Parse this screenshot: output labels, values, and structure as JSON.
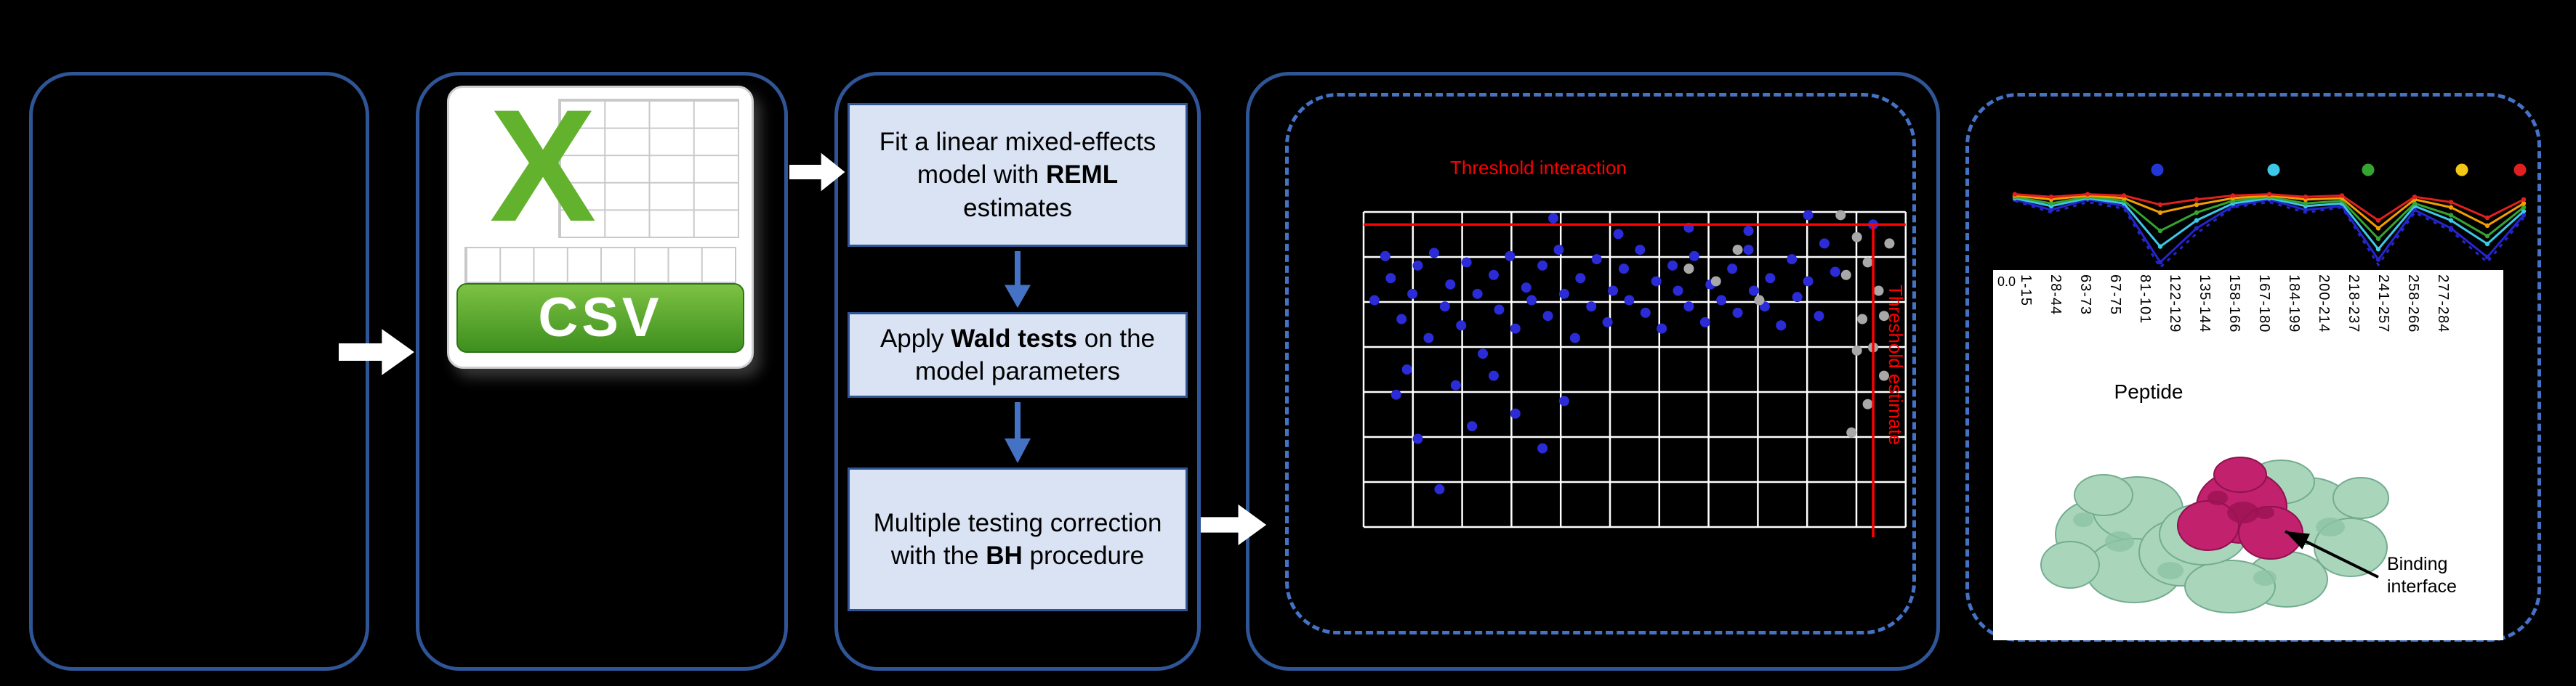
{
  "figure": {
    "background": "#000000",
    "panel_border_color": "#2f5597",
    "dashed_border_color": "#4472c4"
  },
  "csv": {
    "letter": "X",
    "banner_label": "CSV"
  },
  "pipeline": {
    "box_fill": "#dae3f3",
    "arrow_color": "#4472c4",
    "steps": [
      {
        "pre": "Fit a linear mixed-effects model with ",
        "bold": "REML",
        "post": " estimates"
      },
      {
        "pre": "Apply ",
        "bold": "Wald tests",
        "post": " on the model parameters"
      },
      {
        "pre": "Multiple testing correction with the ",
        "bold": "BH",
        "post": " procedure"
      }
    ]
  },
  "protein": {
    "caption": "Binding interface",
    "surface_color": "#a9d6ba",
    "interface_color": "#c2216d"
  },
  "chart_data": [
    {
      "id": "interaction-scatter",
      "type": "scatter",
      "grid": {
        "v_lines": 12,
        "h_lines": 8,
        "color": "#ffffff"
      },
      "thresholds": {
        "color": "#ff0000",
        "horizontal_y_pct": 4,
        "vertical_x_pct": 94,
        "horizontal_label": "Threshold interaction",
        "vertical_label": "Threshold estimate"
      },
      "series": [
        {
          "name": "blue",
          "color": "#2b2bd8",
          "points_pct": [
            [
              2,
              28
            ],
            [
              4,
              14
            ],
            [
              5,
              21
            ],
            [
              7,
              34
            ],
            [
              9,
              26
            ],
            [
              10,
              17
            ],
            [
              12,
              40
            ],
            [
              13,
              13
            ],
            [
              15,
              30
            ],
            [
              16,
              23
            ],
            [
              18,
              36
            ],
            [
              19,
              16
            ],
            [
              21,
              26
            ],
            [
              22,
              45
            ],
            [
              24,
              20
            ],
            [
              25,
              31
            ],
            [
              27,
              14
            ],
            [
              28,
              37
            ],
            [
              30,
              24
            ],
            [
              31,
              28
            ],
            [
              33,
              17
            ],
            [
              34,
              33
            ],
            [
              36,
              12
            ],
            [
              37,
              26
            ],
            [
              39,
              40
            ],
            [
              40,
              21
            ],
            [
              42,
              30
            ],
            [
              43,
              15
            ],
            [
              45,
              35
            ],
            [
              46,
              25
            ],
            [
              48,
              18
            ],
            [
              49,
              28
            ],
            [
              51,
              12
            ],
            [
              52,
              32
            ],
            [
              54,
              22
            ],
            [
              55,
              37
            ],
            [
              57,
              17
            ],
            [
              58,
              25
            ],
            [
              60,
              30
            ],
            [
              61,
              14
            ],
            [
              63,
              35
            ],
            [
              64,
              23
            ],
            [
              66,
              28
            ],
            [
              68,
              18
            ],
            [
              69,
              32
            ],
            [
              71,
              12
            ],
            [
              72,
              25
            ],
            [
              74,
              30
            ],
            [
              75,
              21
            ],
            [
              77,
              36
            ],
            [
              79,
              15
            ],
            [
              80,
              27
            ],
            [
              82,
              22
            ],
            [
              84,
              33
            ],
            [
              85,
              10
            ],
            [
              87,
              19
            ],
            [
              6,
              58
            ],
            [
              10,
              72
            ],
            [
              14,
              88
            ],
            [
              17,
              55
            ],
            [
              20,
              68
            ],
            [
              24,
              52
            ],
            [
              28,
              64
            ],
            [
              33,
              75
            ],
            [
              37,
              60
            ],
            [
              8,
              50
            ],
            [
              35,
              2
            ],
            [
              60,
              5
            ],
            [
              82,
              1
            ],
            [
              94,
              4
            ],
            [
              47,
              7
            ],
            [
              71,
              6
            ]
          ]
        },
        {
          "name": "gray",
          "color": "#a8a8a8",
          "points_pct": [
            [
              88,
              1
            ],
            [
              91,
              8
            ],
            [
              93,
              16
            ],
            [
              95,
              25
            ],
            [
              92,
              34
            ],
            [
              94,
              43
            ],
            [
              96,
              52
            ],
            [
              93,
              61
            ],
            [
              90,
              70
            ],
            [
              89,
              20
            ],
            [
              91,
              44
            ],
            [
              97,
              10
            ],
            [
              65,
              22
            ],
            [
              69,
              12
            ],
            [
              73,
              28
            ],
            [
              60,
              18
            ],
            [
              96,
              33
            ]
          ]
        }
      ]
    },
    {
      "id": "uptake-profile",
      "type": "line",
      "xlabel": "Peptide",
      "y_tick_labels": [
        "0.0"
      ],
      "x_categories": [
        "1-15",
        "28-44",
        "63-73",
        "67-75",
        "81-101",
        "122-129",
        "135-144",
        "158-166",
        "167-180",
        "184-199",
        "200-214",
        "218-237",
        "241-257",
        "258-266",
        "277-284"
      ],
      "legend_dot_colors": [
        "#2336d4",
        "#3cc8e6",
        "#36a431",
        "#f2c715",
        "#e02020"
      ],
      "series": [
        {
          "name": "blue-dashed",
          "color": "#2525cc",
          "dash": "5 7",
          "values": [
            -0.35,
            -0.8,
            -0.4,
            -0.65,
            -2.9,
            -1.6,
            -0.6,
            -0.4,
            -0.8,
            -0.6,
            -2.8,
            -0.8,
            -1.5,
            -2.7,
            -1.0
          ]
        },
        {
          "name": "blue",
          "color": "#2525cc",
          "dash": "",
          "values": [
            -0.3,
            -0.7,
            -0.3,
            -0.55,
            -2.7,
            -1.4,
            -0.55,
            -0.3,
            -0.7,
            -0.55,
            -2.6,
            -0.7,
            -1.4,
            -2.5,
            -0.9
          ]
        },
        {
          "name": "cyan",
          "color": "#3cc8e6",
          "dash": "",
          "values": [
            -0.25,
            -0.55,
            -0.25,
            -0.45,
            -2.1,
            -1.1,
            -0.45,
            -0.25,
            -0.55,
            -0.45,
            -2.2,
            -0.55,
            -1.1,
            -2.0,
            -0.75
          ]
        },
        {
          "name": "green",
          "color": "#36a431",
          "dash": "",
          "values": [
            -0.2,
            -0.45,
            -0.2,
            -0.35,
            -1.5,
            -0.8,
            -0.35,
            -0.2,
            -0.45,
            -0.35,
            -1.8,
            -0.45,
            -0.9,
            -1.7,
            -0.6
          ]
        },
        {
          "name": "orange",
          "color": "#f29d00",
          "dash": "",
          "values": [
            -0.15,
            -0.3,
            -0.15,
            -0.25,
            -0.8,
            -0.5,
            -0.25,
            -0.15,
            -0.3,
            -0.25,
            -1.4,
            -0.3,
            -0.6,
            -1.3,
            -0.45
          ]
        },
        {
          "name": "red",
          "color": "#e02020",
          "dash": "",
          "values": [
            -0.1,
            -0.2,
            -0.1,
            -0.15,
            -0.5,
            -0.3,
            -0.15,
            -0.1,
            -0.2,
            -0.15,
            -1.1,
            -0.2,
            -0.4,
            -1.0,
            -0.3
          ]
        }
      ]
    }
  ]
}
